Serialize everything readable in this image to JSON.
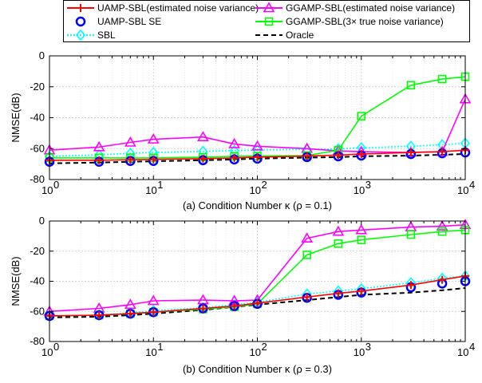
{
  "legend": [
    {
      "label": "UAMP-SBL(estimated noise variance)",
      "color": "#ff0000",
      "marker": "plus",
      "dash": "solid"
    },
    {
      "label": "GGAMP-SBL(estimated noise variance)",
      "color": "#ff00ff",
      "marker": "triangle",
      "dash": "solid"
    },
    {
      "label": "UAMP-SBL SE",
      "color": "#0000ff",
      "marker": "circle",
      "dash": "none"
    },
    {
      "label": "GGAMP-SBL(3× true noise variance)",
      "color": "#00ff00",
      "marker": "square",
      "dash": "solid"
    },
    {
      "label": "SBL",
      "color": "#00ffff",
      "marker": "diamond",
      "dash": "dotted"
    },
    {
      "label": "Oracle",
      "color": "#000000",
      "marker": "none",
      "dash": "dashed"
    }
  ],
  "chart_data": [
    {
      "type": "line",
      "title": "(a) Condition Number κ (ρ = 0.1)",
      "xlabel": "(a) Condition Number κ (ρ = 0.1)",
      "ylabel": "NMSE(dB)",
      "xscale": "log",
      "xlim": [
        1,
        10000
      ],
      "ylim": [
        -80,
        0
      ],
      "yticks": [
        0,
        -20,
        -40,
        -60,
        -80
      ],
      "xticks": [
        "10^0",
        "10^1",
        "10^2",
        "10^3",
        "10^4"
      ],
      "grid": true,
      "x": [
        1,
        3,
        6,
        10,
        30,
        60,
        100,
        300,
        600,
        1000,
        3000,
        6000,
        10000
      ],
      "series": [
        {
          "name": "Oracle",
          "values": [
            -69.5,
            -69,
            -68.5,
            -68.2,
            -67.5,
            -67,
            -66.5,
            -65.8,
            -65.5,
            -65,
            -64.5,
            -64,
            -63.5
          ]
        },
        {
          "name": "SBL",
          "values": [
            -65,
            -64,
            -63,
            -62.5,
            -61.8,
            -61.2,
            -61,
            -60.5,
            -60.2,
            -59.5,
            -58.5,
            -57.5,
            -56.5
          ]
        },
        {
          "name": "GGAMP-SBL(estimated noise variance)",
          "values": [
            -61,
            -59,
            -56,
            -54,
            -52.5,
            -57,
            -58.5,
            -60,
            -61.5,
            -62,
            -62.5,
            -62,
            -28
          ]
        },
        {
          "name": "GGAMP-SBL(3× true noise variance)",
          "values": [
            -66,
            -66,
            -66,
            -66,
            -65.5,
            -65,
            -64.8,
            -64.5,
            -61,
            -39,
            -19,
            -15,
            -13.5
          ]
        },
        {
          "name": "UAMP-SBL SE",
          "values": [
            -68.5,
            -68.5,
            -68,
            -68,
            -67.5,
            -67,
            -66.5,
            -65.5,
            -65,
            -64.5,
            -63.5,
            -63,
            -62.5
          ]
        },
        {
          "name": "UAMP-SBL(estimated noise variance)",
          "values": [
            -67.5,
            -67.5,
            -67.2,
            -67,
            -66.5,
            -66,
            -65.5,
            -64.8,
            -64.2,
            -63.5,
            -62.5,
            -62,
            -61
          ]
        }
      ]
    },
    {
      "type": "line",
      "title": "(b) Condition Number κ (ρ = 0.3)",
      "xlabel": "(b) Condition Number κ (ρ = 0.3)",
      "ylabel": "NMSE(dB)",
      "xscale": "log",
      "xlim": [
        1,
        10000
      ],
      "ylim": [
        -80,
        0
      ],
      "yticks": [
        0,
        -20,
        -40,
        -60,
        -80
      ],
      "xticks": [
        "10^0",
        "10^1",
        "10^2",
        "10^3",
        "10^4"
      ],
      "grid": true,
      "x": [
        1,
        3,
        6,
        10,
        30,
        60,
        100,
        300,
        600,
        1000,
        3000,
        6000,
        10000
      ],
      "series": [
        {
          "name": "Oracle",
          "values": [
            -64,
            -63.5,
            -62.5,
            -61.5,
            -59,
            -57,
            -55.5,
            -52.5,
            -50.5,
            -49,
            -47.5,
            -46,
            -44.5
          ]
        },
        {
          "name": "SBL",
          "values": [
            -63,
            -62.5,
            -61,
            -59.5,
            -57.5,
            -55.5,
            -54,
            -48.5,
            -46.5,
            -45,
            -41,
            -38,
            -36.5
          ]
        },
        {
          "name": "GGAMP-SBL(estimated noise variance)",
          "values": [
            -60,
            -58,
            -55.5,
            -53,
            -52.5,
            -53,
            -52.5,
            -11.5,
            -7,
            -6,
            -4,
            -3.5,
            -2.5
          ]
        },
        {
          "name": "GGAMP-SBL(3× true noise variance)",
          "values": [
            -63,
            -62.5,
            -61.5,
            -60.5,
            -58.5,
            -57,
            -55,
            -22.5,
            -15,
            -12.5,
            -9,
            -7,
            -6
          ]
        },
        {
          "name": "UAMP-SBL SE",
          "values": [
            -63,
            -62.5,
            -61.5,
            -60.5,
            -58,
            -56.5,
            -55,
            -51,
            -49,
            -47.5,
            -44,
            -41.5,
            -40
          ]
        },
        {
          "name": "UAMP-SBL(estimated noise variance)",
          "values": [
            -63,
            -62.5,
            -61.5,
            -60.5,
            -58,
            -56.5,
            -54.5,
            -50.5,
            -48,
            -46.5,
            -42.5,
            -39,
            -36.5
          ]
        }
      ]
    }
  ]
}
